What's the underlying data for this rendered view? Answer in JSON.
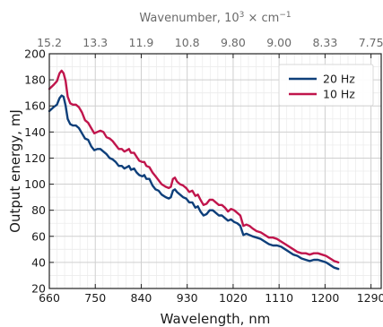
{
  "chart_data": {
    "type": "line",
    "xlabel": "Wavelength, nm",
    "ylabel": "Output energy, mJ",
    "top_axis": {
      "label_prefix": "Wavenumber, 10",
      "label_exp": "3",
      "label_suffix": " × cm",
      "label_unit_exp": "−1",
      "tick_labels": [
        "15.2",
        "13.3",
        "11.9",
        "10.8",
        "9.80",
        "9.00",
        "8.33",
        "7.75"
      ],
      "tick_positions_nm": [
        660,
        750,
        840,
        930,
        1020,
        1110,
        1200,
        1290
      ]
    },
    "xlim": [
      660,
      1310
    ],
    "ylim": [
      20,
      200
    ],
    "xticks": [
      660,
      750,
      840,
      930,
      1020,
      1110,
      1200,
      1290
    ],
    "xtick_labels": [
      "660",
      "750",
      "840",
      "930",
      "1020",
      "1110",
      "1200",
      "1290"
    ],
    "yticks": [
      20,
      40,
      60,
      80,
      100,
      120,
      140,
      160,
      180,
      200
    ],
    "ytick_labels": [
      "20",
      "40",
      "60",
      "80",
      "100",
      "120",
      "140",
      "160",
      "180",
      "200"
    ],
    "x_minor_step": 15,
    "y_minor_step": 10,
    "grid": true,
    "legend_position": "top-right",
    "series": [
      {
        "name": "20 Hz",
        "color": "#0e3f7a",
        "points": [
          [
            660,
            156
          ],
          [
            668,
            159
          ],
          [
            675,
            161
          ],
          [
            680,
            166
          ],
          [
            684,
            168
          ],
          [
            688,
            167
          ],
          [
            692,
            160
          ],
          [
            696,
            150
          ],
          [
            701,
            146
          ],
          [
            706,
            145
          ],
          [
            712,
            145
          ],
          [
            718,
            143
          ],
          [
            724,
            139
          ],
          [
            730,
            135
          ],
          [
            736,
            134
          ],
          [
            742,
            129
          ],
          [
            748,
            126
          ],
          [
            754,
            127
          ],
          [
            760,
            127
          ],
          [
            766,
            125
          ],
          [
            772,
            123
          ],
          [
            778,
            120
          ],
          [
            784,
            119
          ],
          [
            790,
            117
          ],
          [
            796,
            114
          ],
          [
            802,
            114
          ],
          [
            807,
            112
          ],
          [
            812,
            113
          ],
          [
            816,
            114
          ],
          [
            820,
            111
          ],
          [
            826,
            112
          ],
          [
            831,
            109
          ],
          [
            836,
            107
          ],
          [
            842,
            106
          ],
          [
            846,
            107
          ],
          [
            850,
            104
          ],
          [
            856,
            104
          ],
          [
            862,
            99
          ],
          [
            868,
            96
          ],
          [
            874,
            95
          ],
          [
            880,
            92
          ],
          [
            888,
            90
          ],
          [
            894,
            89
          ],
          [
            898,
            90
          ],
          [
            902,
            95
          ],
          [
            906,
            96
          ],
          [
            910,
            94
          ],
          [
            916,
            92
          ],
          [
            922,
            90
          ],
          [
            928,
            89
          ],
          [
            934,
            86
          ],
          [
            940,
            86
          ],
          [
            946,
            82
          ],
          [
            951,
            83
          ],
          [
            956,
            79
          ],
          [
            962,
            76
          ],
          [
            968,
            77
          ],
          [
            974,
            80
          ],
          [
            980,
            80
          ],
          [
            986,
            78
          ],
          [
            992,
            76
          ],
          [
            998,
            76
          ],
          [
            1004,
            74
          ],
          [
            1010,
            72
          ],
          [
            1016,
            73
          ],
          [
            1022,
            71
          ],
          [
            1028,
            70
          ],
          [
            1034,
            68
          ],
          [
            1040,
            61
          ],
          [
            1046,
            62
          ],
          [
            1052,
            61
          ],
          [
            1058,
            60
          ],
          [
            1066,
            59
          ],
          [
            1074,
            58
          ],
          [
            1082,
            56
          ],
          [
            1090,
            54
          ],
          [
            1098,
            53
          ],
          [
            1106,
            53
          ],
          [
            1114,
            52
          ],
          [
            1122,
            50
          ],
          [
            1130,
            48
          ],
          [
            1138,
            46
          ],
          [
            1146,
            45
          ],
          [
            1154,
            43
          ],
          [
            1162,
            42
          ],
          [
            1170,
            41
          ],
          [
            1178,
            42
          ],
          [
            1186,
            42
          ],
          [
            1194,
            41
          ],
          [
            1202,
            40
          ],
          [
            1210,
            38
          ],
          [
            1218,
            36
          ],
          [
            1226,
            35
          ]
        ]
      },
      {
        "name": "10 Hz",
        "color": "#c0154c",
        "points": [
          [
            660,
            173
          ],
          [
            668,
            176
          ],
          [
            675,
            179
          ],
          [
            680,
            185
          ],
          [
            684,
            187
          ],
          [
            688,
            185
          ],
          [
            692,
            179
          ],
          [
            696,
            167
          ],
          [
            701,
            162
          ],
          [
            706,
            161
          ],
          [
            712,
            161
          ],
          [
            718,
            159
          ],
          [
            724,
            155
          ],
          [
            730,
            149
          ],
          [
            736,
            147
          ],
          [
            742,
            143
          ],
          [
            748,
            139
          ],
          [
            754,
            140
          ],
          [
            760,
            141
          ],
          [
            766,
            140
          ],
          [
            772,
            136
          ],
          [
            778,
            135
          ],
          [
            784,
            133
          ],
          [
            790,
            130
          ],
          [
            796,
            127
          ],
          [
            802,
            127
          ],
          [
            807,
            125
          ],
          [
            812,
            126
          ],
          [
            816,
            127
          ],
          [
            820,
            124
          ],
          [
            826,
            124
          ],
          [
            831,
            121
          ],
          [
            836,
            118
          ],
          [
            842,
            117
          ],
          [
            846,
            117
          ],
          [
            850,
            114
          ],
          [
            856,
            113
          ],
          [
            862,
            109
          ],
          [
            868,
            106
          ],
          [
            874,
            103
          ],
          [
            880,
            100
          ],
          [
            888,
            98
          ],
          [
            894,
            97
          ],
          [
            898,
            98
          ],
          [
            902,
            104
          ],
          [
            906,
            105
          ],
          [
            910,
            102
          ],
          [
            916,
            100
          ],
          [
            922,
            99
          ],
          [
            928,
            97
          ],
          [
            934,
            94
          ],
          [
            940,
            95
          ],
          [
            946,
            91
          ],
          [
            951,
            92
          ],
          [
            956,
            88
          ],
          [
            962,
            84
          ],
          [
            968,
            85
          ],
          [
            974,
            88
          ],
          [
            980,
            88
          ],
          [
            986,
            86
          ],
          [
            992,
            84
          ],
          [
            998,
            84
          ],
          [
            1004,
            82
          ],
          [
            1010,
            79
          ],
          [
            1016,
            81
          ],
          [
            1022,
            80
          ],
          [
            1028,
            78
          ],
          [
            1034,
            76
          ],
          [
            1040,
            68
          ],
          [
            1046,
            69
          ],
          [
            1052,
            68
          ],
          [
            1058,
            66
          ],
          [
            1066,
            64
          ],
          [
            1074,
            63
          ],
          [
            1082,
            61
          ],
          [
            1090,
            59
          ],
          [
            1098,
            59
          ],
          [
            1106,
            58
          ],
          [
            1114,
            56
          ],
          [
            1122,
            54
          ],
          [
            1130,
            52
          ],
          [
            1138,
            50
          ],
          [
            1146,
            48
          ],
          [
            1154,
            47
          ],
          [
            1162,
            47
          ],
          [
            1170,
            46
          ],
          [
            1178,
            47
          ],
          [
            1186,
            47
          ],
          [
            1194,
            46
          ],
          [
            1202,
            45
          ],
          [
            1210,
            43
          ],
          [
            1218,
            41
          ],
          [
            1226,
            40
          ]
        ]
      }
    ]
  }
}
